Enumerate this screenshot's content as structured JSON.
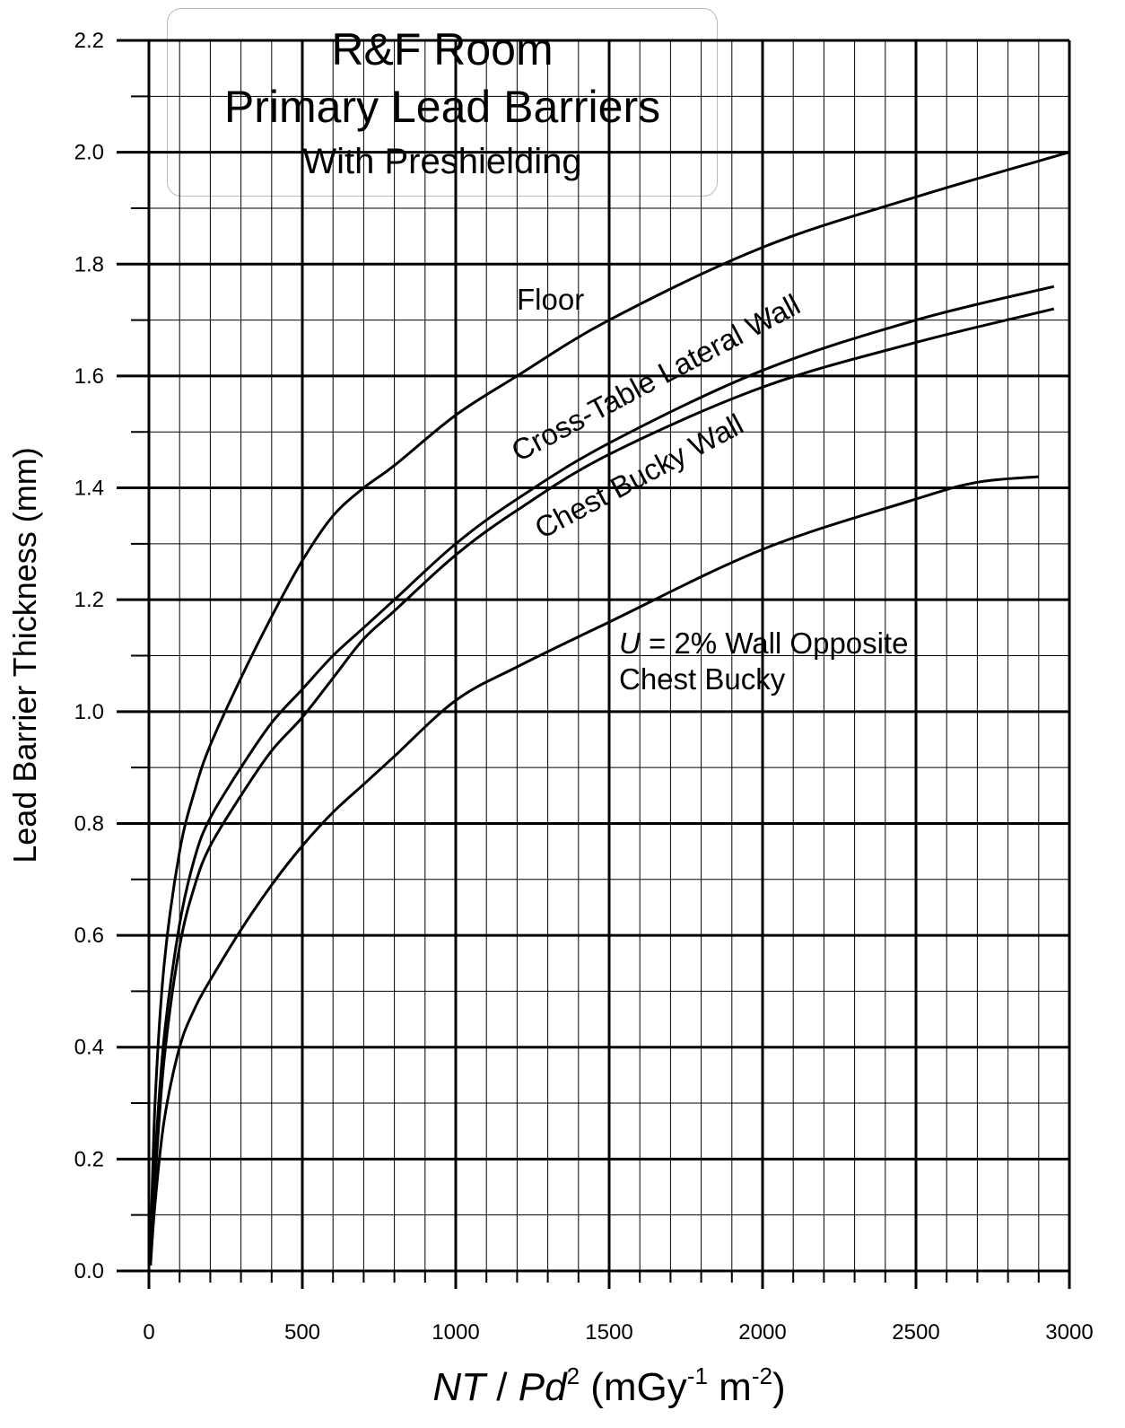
{
  "chart_data": {
    "type": "line",
    "title_lines": [
      "R&F Room",
      "Primary Lead Barriers",
      "With Preshielding"
    ],
    "xlabel": {
      "italic1": "NT",
      "sep": " / ",
      "italic2": "Pd",
      "sup": "2",
      "unit_open": " (mGy",
      "unit_sup1": "-1",
      "unit_mid": " m",
      "unit_sup2": "-2",
      "unit_close": ")"
    },
    "ylabel": "Lead Barrier Thickness (mm)",
    "xlim": [
      0,
      3000
    ],
    "ylim": [
      0,
      2.2
    ],
    "x_ticks": [
      "0",
      "500",
      "1000",
      "1500",
      "2000",
      "2500",
      "3000"
    ],
    "y_ticks": [
      "0.0",
      "0.2",
      "0.4",
      "0.6",
      "0.8",
      "1.0",
      "1.2",
      "1.4",
      "1.6",
      "1.8",
      "2.0",
      "2.2"
    ],
    "grid": true,
    "series": [
      {
        "name": "Floor",
        "x": [
          5,
          20,
          50,
          100,
          150,
          200,
          300,
          400,
          500,
          600,
          700,
          800,
          1000,
          1200,
          1500,
          2000,
          2500,
          3000
        ],
        "y": [
          0.03,
          0.3,
          0.55,
          0.75,
          0.86,
          0.94,
          1.06,
          1.17,
          1.27,
          1.35,
          1.4,
          1.44,
          1.53,
          1.6,
          1.7,
          1.83,
          1.92,
          2.0
        ]
      },
      {
        "name": "Cross-Table Lateral Wall",
        "x": [
          5,
          20,
          50,
          100,
          150,
          200,
          300,
          400,
          500,
          600,
          700,
          800,
          1000,
          1200,
          1500,
          2000,
          2500,
          2950
        ],
        "y": [
          0.02,
          0.2,
          0.42,
          0.62,
          0.74,
          0.81,
          0.9,
          0.98,
          1.04,
          1.1,
          1.15,
          1.2,
          1.3,
          1.38,
          1.48,
          1.61,
          1.7,
          1.76
        ]
      },
      {
        "name": "Chest Bucky Wall",
        "x": [
          5,
          20,
          50,
          100,
          150,
          200,
          300,
          400,
          500,
          600,
          700,
          800,
          1000,
          1200,
          1500,
          2000,
          2500,
          2950
        ],
        "y": [
          0.01,
          0.16,
          0.38,
          0.58,
          0.69,
          0.76,
          0.85,
          0.93,
          0.99,
          1.06,
          1.13,
          1.18,
          1.28,
          1.36,
          1.46,
          1.58,
          1.66,
          1.72
        ]
      },
      {
        "name": "U = 2% Wall Opposite Chest Bucky",
        "x": [
          5,
          20,
          50,
          100,
          150,
          200,
          300,
          400,
          500,
          600,
          700,
          800,
          1000,
          1200,
          1500,
          2000,
          2500,
          2700,
          2900
        ],
        "y": [
          0.01,
          0.12,
          0.27,
          0.4,
          0.47,
          0.52,
          0.61,
          0.69,
          0.76,
          0.82,
          0.87,
          0.92,
          1.02,
          1.08,
          1.16,
          1.29,
          1.38,
          1.41,
          1.42
        ]
      }
    ],
    "annotations": {
      "floor": "Floor",
      "lateral": "Cross-Table Lateral Wall",
      "chest": "Chest Bucky Wall",
      "opposite_u": "U",
      "opposite_rest": " = 2% Wall Opposite",
      "opposite_line2": "Chest Bucky"
    }
  }
}
